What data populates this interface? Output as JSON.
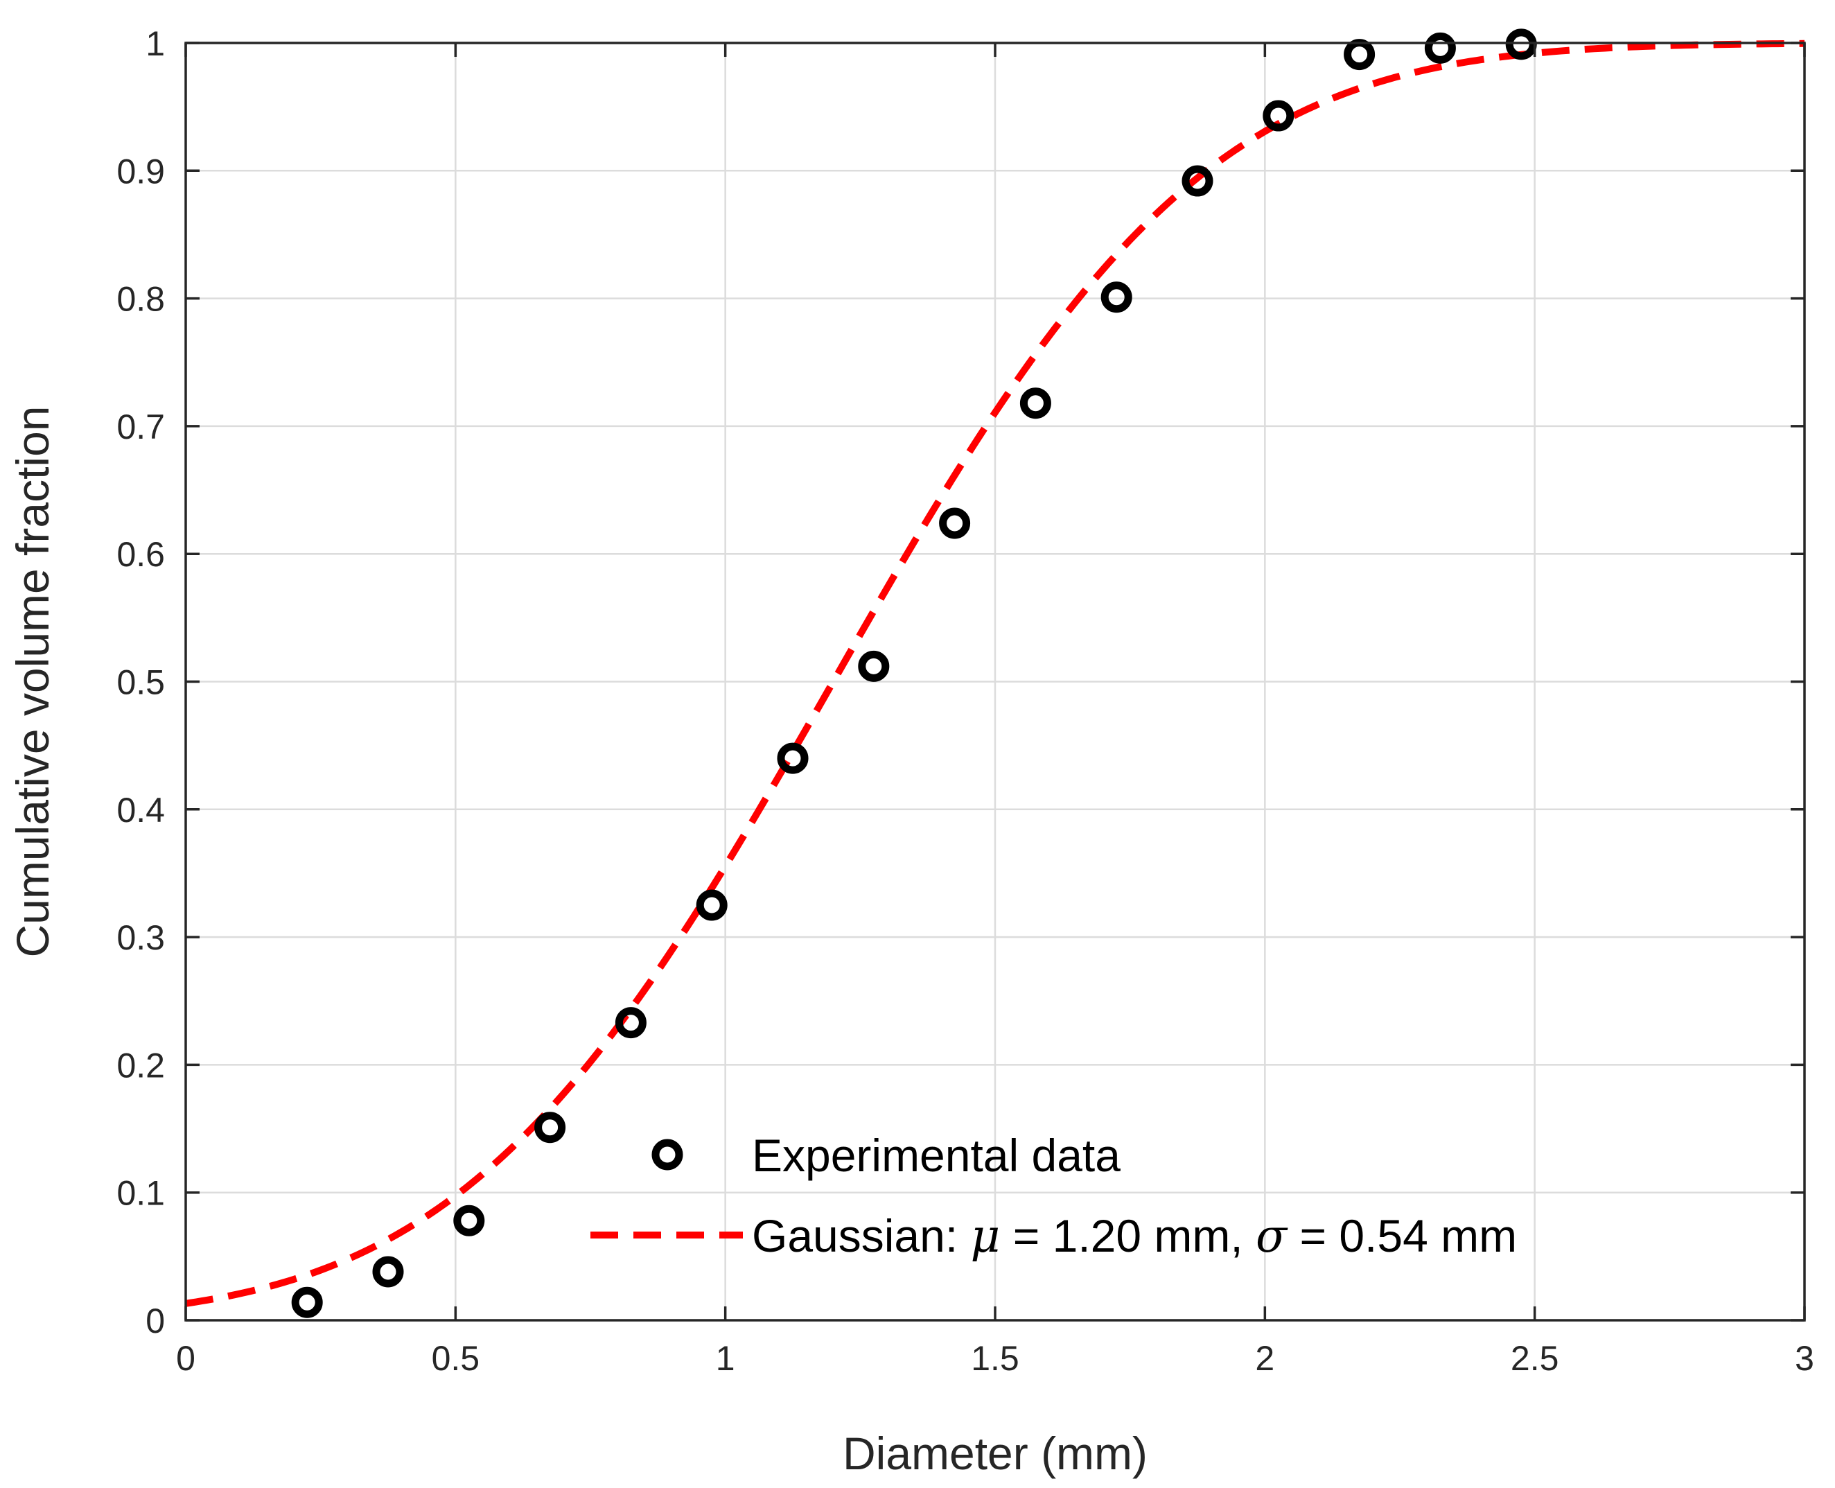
{
  "chart_data": {
    "type": "scatter",
    "xlabel": "Diameter (mm)",
    "ylabel": "Cumulative volume fraction",
    "xlim": [
      0,
      3
    ],
    "ylim": [
      0,
      1
    ],
    "xticks": [
      0,
      0.5,
      1,
      1.5,
      2,
      2.5,
      3
    ],
    "xtick_labels": [
      "0",
      "0.5",
      "1",
      "1.5",
      "2",
      "2.5",
      "3"
    ],
    "yticks": [
      0,
      0.1,
      0.2,
      0.3,
      0.4,
      0.5,
      0.6,
      0.7,
      0.8,
      0.9,
      1
    ],
    "ytick_labels": [
      "0",
      "0.1",
      "0.2",
      "0.3",
      "0.4",
      "0.5",
      "0.6",
      "0.7",
      "0.8",
      "0.9",
      "1"
    ],
    "grid": true,
    "legend_position": "bottom-right",
    "series": [
      {
        "name": "Experimental data",
        "type": "scatter",
        "marker": "open-circle",
        "color": "#000000",
        "x": [
          0.225,
          0.375,
          0.525,
          0.675,
          0.825,
          0.975,
          1.125,
          1.275,
          1.425,
          1.575,
          1.725,
          1.875,
          2.025,
          2.175,
          2.325,
          2.475
        ],
        "y": [
          0.014,
          0.038,
          0.078,
          0.151,
          0.233,
          0.325,
          0.44,
          0.512,
          0.624,
          0.718,
          0.801,
          0.892,
          0.943,
          0.991,
          0.996,
          0.999
        ]
      },
      {
        "name": "Gaussian: μ = 1.20 mm, σ = 0.54 mm",
        "type": "line",
        "style": "dashed",
        "color": "#ff0000",
        "distribution": "normal-cdf",
        "mu": 1.2,
        "sigma": 0.54
      }
    ],
    "legend": {
      "marker_label": "Experimental data",
      "line_label_prefix": "Gaussian: ",
      "mu_symbol": "μ",
      "mu_text": " = 1.20 mm, ",
      "sigma_symbol": "σ",
      "sigma_text": " = 0.54 mm"
    }
  }
}
